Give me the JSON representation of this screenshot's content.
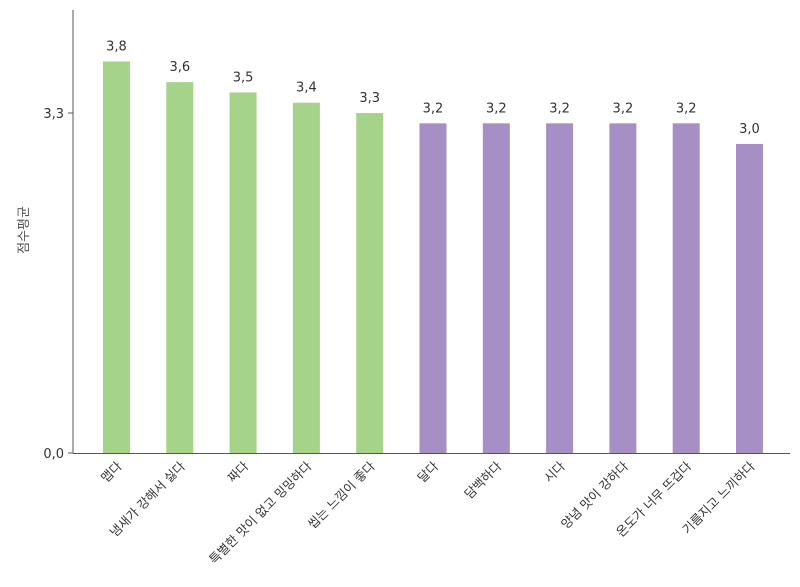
{
  "chart_data": {
    "type": "bar",
    "ylabel": "점수평균",
    "ylim": [
      0.0,
      4.3
    ],
    "yticks": [
      {
        "value": 0.0,
        "label": "0,0"
      },
      {
        "value": 3.3,
        "label": "3,3"
      }
    ],
    "categories": [
      "맵다",
      "냄새가 강해서 싫다",
      "짜다",
      "특별한 맛이 없고 밍밍하다",
      "씹는 느낌이 좋다",
      "달다",
      "담백하다",
      "시다",
      "양념 맛이 강하다",
      "온도가 너무 뜨겁다",
      "기름지고 느끼하다"
    ],
    "values": [
      3.8,
      3.6,
      3.5,
      3.4,
      3.3,
      3.2,
      3.2,
      3.2,
      3.2,
      3.2,
      3.0
    ],
    "value_labels": [
      "3,8",
      "3,6",
      "3,5",
      "3,4",
      "3,3",
      "3,2",
      "3,2",
      "3,2",
      "3,2",
      "3,2",
      "3,0"
    ],
    "bar_colors": [
      "#a6d38a",
      "#a6d38a",
      "#a6d38a",
      "#a6d38a",
      "#a6d38a",
      "#a58fc4",
      "#a58fc4",
      "#a58fc4",
      "#a58fc4",
      "#a58fc4",
      "#a58fc4"
    ],
    "axis_color": "#555555",
    "grid": false,
    "legend": "none"
  }
}
